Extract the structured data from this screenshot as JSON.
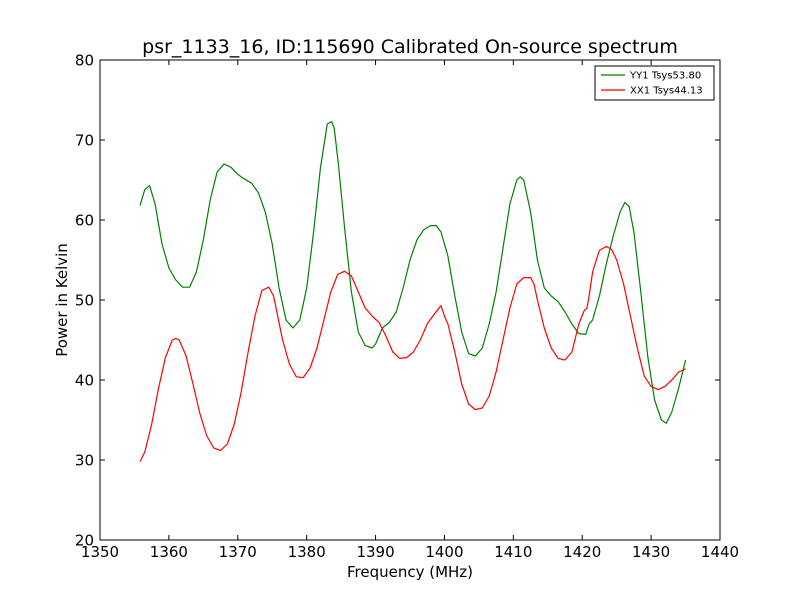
{
  "chart_data": {
    "type": "line",
    "title": "psr_1133_16, ID:115690 Calibrated On-source spectrum",
    "xlabel": "Frequency (MHz)",
    "ylabel": "Power in Kelvin",
    "xlim": [
      1350,
      1440
    ],
    "ylim": [
      20,
      80
    ],
    "xticks": [
      1350,
      1360,
      1370,
      1380,
      1390,
      1400,
      1410,
      1420,
      1430,
      1440
    ],
    "yticks": [
      20,
      30,
      40,
      50,
      60,
      70,
      80
    ],
    "xtick_labels": [
      "1350",
      "1360",
      "1370",
      "1380",
      "1390",
      "1400",
      "1410",
      "1420",
      "1430",
      "1440"
    ],
    "ytick_labels": [
      "20",
      "30",
      "40",
      "50",
      "60",
      "70",
      "80"
    ],
    "grid": false,
    "legend_position": "top-right",
    "series": [
      {
        "name": "YY1 Tsys53.80",
        "color": "#008000",
        "x": [
          1355.8,
          1356.5,
          1357.2,
          1358.0,
          1359.0,
          1360.0,
          1361.0,
          1362.0,
          1363.0,
          1364.0,
          1365.0,
          1366.0,
          1367.0,
          1368.0,
          1369.0,
          1370.0,
          1371.0,
          1372.0,
          1373.0,
          1374.0,
          1375.0,
          1376.0,
          1377.0,
          1378.0,
          1379.0,
          1380.0,
          1381.0,
          1382.0,
          1383.0,
          1383.6,
          1384.0,
          1384.6,
          1385.5,
          1386.5,
          1387.5,
          1388.5,
          1389.5,
          1390.0,
          1391.0,
          1392.0,
          1393.0,
          1394.0,
          1395.0,
          1396.0,
          1397.0,
          1398.0,
          1398.8,
          1399.5,
          1400.5,
          1401.5,
          1402.5,
          1403.5,
          1404.5,
          1405.5,
          1406.5,
          1407.5,
          1408.5,
          1409.5,
          1410.5,
          1411.0,
          1411.5,
          1412.5,
          1413.5,
          1414.5,
          1415.5,
          1416.5,
          1417.5,
          1418.5,
          1419.5,
          1420.5,
          1421.0,
          1421.5,
          1422.5,
          1423.5,
          1424.5,
          1425.5,
          1426.2,
          1426.8,
          1427.5,
          1428.5,
          1429.5,
          1430.5,
          1431.5,
          1432.2,
          1433.0,
          1434.0,
          1435.0
        ],
        "values": [
          61.8,
          63.8,
          64.3,
          62.0,
          57.0,
          54.0,
          52.5,
          51.6,
          51.6,
          53.5,
          57.5,
          62.5,
          66.0,
          67.0,
          66.6,
          65.7,
          65.1,
          64.6,
          63.4,
          61.0,
          57.0,
          51.5,
          47.5,
          46.5,
          47.5,
          51.5,
          58.5,
          66.5,
          72.0,
          72.3,
          71.5,
          67.0,
          59.0,
          51.0,
          46.0,
          44.3,
          44.0,
          44.5,
          46.5,
          47.2,
          48.5,
          51.5,
          55.0,
          57.5,
          58.8,
          59.3,
          59.3,
          58.5,
          55.5,
          50.5,
          46.0,
          43.3,
          43.0,
          44.0,
          47.0,
          51.0,
          56.5,
          62.0,
          65.0,
          65.4,
          65.0,
          61.0,
          55.0,
          51.5,
          50.5,
          49.8,
          48.5,
          47.0,
          45.8,
          45.7,
          47.0,
          47.5,
          50.5,
          54.5,
          58.0,
          61.0,
          62.2,
          61.7,
          58.5,
          51.0,
          43.0,
          37.5,
          35.0,
          34.6,
          36.0,
          39.0,
          42.5
        ]
      },
      {
        "name": "XX1 Tsys44.13",
        "color": "#ff0000",
        "x": [
          1355.8,
          1356.5,
          1357.5,
          1358.5,
          1359.5,
          1360.5,
          1361.0,
          1361.5,
          1362.5,
          1363.5,
          1364.5,
          1365.5,
          1366.5,
          1367.5,
          1368.5,
          1369.5,
          1370.5,
          1371.5,
          1372.5,
          1373.5,
          1374.5,
          1375.2,
          1375.8,
          1376.5,
          1377.5,
          1378.5,
          1379.5,
          1380.5,
          1381.5,
          1382.5,
          1383.5,
          1384.5,
          1385.5,
          1386.5,
          1387.0,
          1387.5,
          1388.5,
          1389.5,
          1390.5,
          1391.5,
          1392.5,
          1393.5,
          1394.5,
          1395.5,
          1396.5,
          1397.5,
          1398.5,
          1399.5,
          1400.0,
          1400.5,
          1401.5,
          1402.5,
          1403.5,
          1404.5,
          1405.5,
          1406.5,
          1407.5,
          1408.5,
          1409.5,
          1410.5,
          1411.5,
          1412.5,
          1413.0,
          1413.5,
          1414.5,
          1415.5,
          1416.5,
          1417.5,
          1418.5,
          1419.5,
          1420.3,
          1420.7,
          1421.0,
          1421.5,
          1422.5,
          1423.5,
          1424.3,
          1425.0,
          1426.0,
          1427.0,
          1428.0,
          1429.0,
          1430.0,
          1431.0,
          1432.0,
          1433.0,
          1434.0,
          1435.0
        ],
        "values": [
          29.8,
          31.0,
          34.5,
          39.0,
          42.8,
          45.0,
          45.2,
          45.0,
          43.0,
          39.5,
          35.8,
          33.0,
          31.5,
          31.2,
          32.0,
          34.5,
          38.5,
          43.5,
          48.0,
          51.2,
          51.6,
          50.5,
          48.0,
          45.0,
          42.0,
          40.4,
          40.3,
          41.5,
          44.0,
          47.5,
          51.0,
          53.2,
          53.6,
          53.0,
          52.0,
          51.0,
          49.0,
          48.0,
          47.2,
          45.5,
          43.5,
          42.7,
          42.8,
          43.5,
          45.0,
          47.0,
          48.2,
          49.3,
          48.0,
          47.0,
          43.5,
          39.5,
          37.0,
          36.3,
          36.5,
          38.0,
          41.0,
          45.0,
          49.0,
          52.0,
          52.8,
          52.8,
          52.0,
          50.0,
          46.5,
          44.0,
          42.7,
          42.5,
          43.5,
          47.0,
          48.7,
          49.0,
          50.5,
          53.5,
          56.2,
          56.7,
          56.3,
          55.0,
          52.0,
          48.0,
          44.0,
          40.5,
          39.2,
          38.8,
          39.2,
          40.0,
          41.0,
          41.4
        ]
      }
    ]
  }
}
